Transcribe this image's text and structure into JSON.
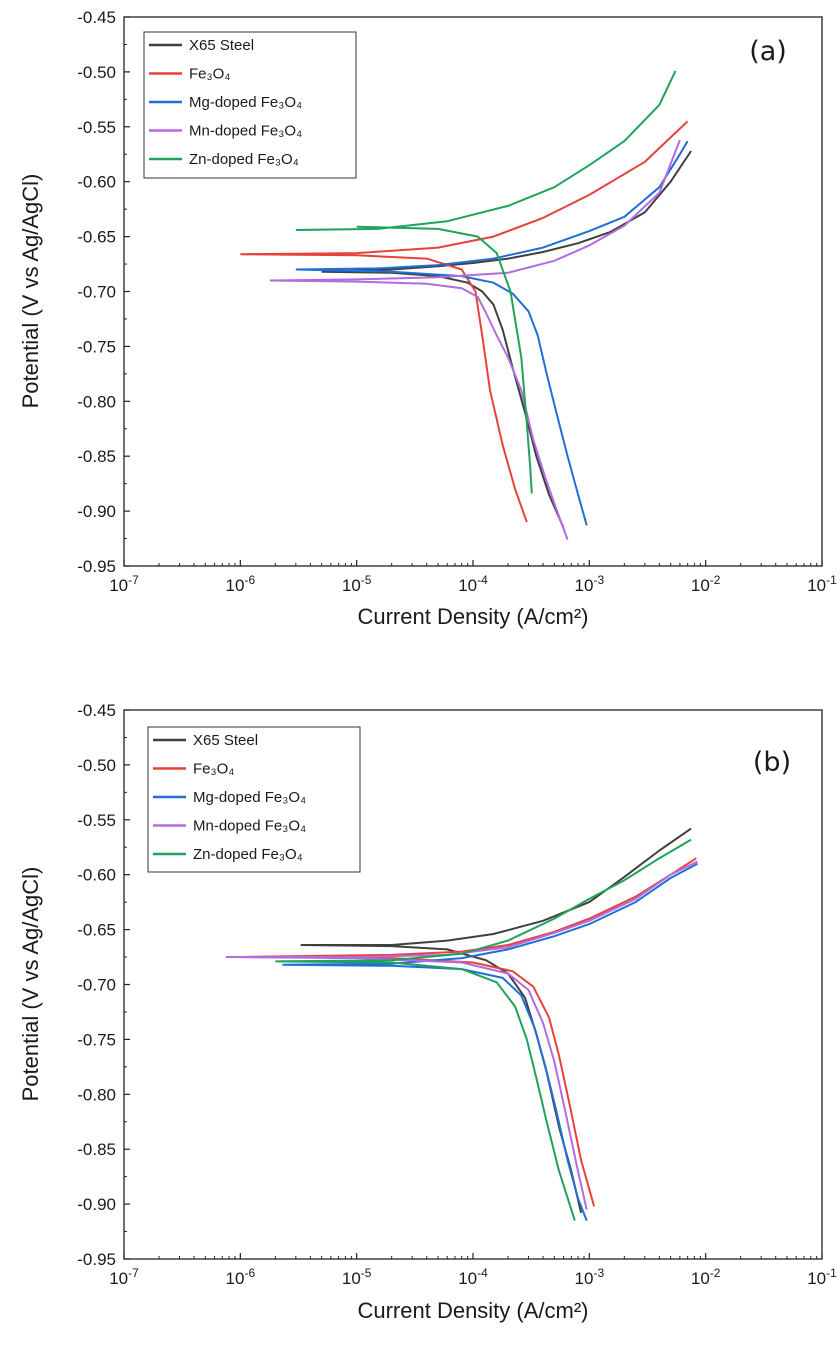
{
  "chart_data": [
    {
      "type": "line",
      "panel_label": "(a)",
      "xlabel": "Current Density (A/cm²)",
      "ylabel": "Potential (V vs Ag/AgCl)",
      "xscale": "log",
      "xlim": [
        1e-07,
        0.1
      ],
      "ylim": [
        -0.95,
        -0.45
      ],
      "x_ticks": [
        "10-7",
        "10-6",
        "10-5",
        "10-4",
        "10-3",
        "10-2",
        "10-1"
      ],
      "y_ticks": [
        "-0.45",
        "-0.50",
        "-0.55",
        "-0.60",
        "-0.65",
        "-0.70",
        "-0.75",
        "-0.80",
        "-0.85",
        "-0.90",
        "-0.95"
      ],
      "grid": false,
      "legend_position": "top-left",
      "series": [
        {
          "name": "X65 Steel",
          "color": "#404040",
          "points": [
            [
              5e-06,
              -0.682
            ],
            [
              2e-05,
              -0.68
            ],
            [
              5e-05,
              -0.677
            ],
            [
              0.0001,
              -0.674
            ],
            [
              0.0002,
              -0.67
            ],
            [
              0.0004,
              -0.664
            ],
            [
              0.0008,
              -0.656
            ],
            [
              0.0015,
              -0.646
            ],
            [
              0.003,
              -0.628
            ],
            [
              0.005,
              -0.6
            ],
            [
              0.0075,
              -0.572
            ],
            null,
            [
              5e-06,
              -0.682
            ],
            [
              2e-05,
              -0.683
            ],
            [
              5e-05,
              -0.686
            ],
            [
              9e-05,
              -0.692
            ],
            [
              0.00012,
              -0.7
            ],
            [
              0.00015,
              -0.712
            ],
            [
              0.00018,
              -0.735
            ],
            [
              0.00022,
              -0.77
            ],
            [
              0.00028,
              -0.81
            ],
            [
              0.00035,
              -0.85
            ],
            [
              0.00045,
              -0.885
            ],
            [
              0.0006,
              -0.915
            ]
          ]
        },
        {
          "name": "Fe₃O₄",
          "color": "#e8413c",
          "points": [
            [
              1e-06,
              -0.666
            ],
            [
              1e-05,
              -0.665
            ],
            [
              5e-05,
              -0.66
            ],
            [
              0.00015,
              -0.65
            ],
            [
              0.0004,
              -0.633
            ],
            [
              0.001,
              -0.612
            ],
            [
              0.003,
              -0.582
            ],
            [
              0.007,
              -0.545
            ],
            null,
            [
              1e-06,
              -0.666
            ],
            [
              1e-05,
              -0.667
            ],
            [
              4e-05,
              -0.67
            ],
            [
              8e-05,
              -0.68
            ],
            [
              0.000105,
              -0.7
            ],
            [
              0.00012,
              -0.74
            ],
            [
              0.00014,
              -0.79
            ],
            [
              0.00018,
              -0.84
            ],
            [
              0.00023,
              -0.88
            ],
            [
              0.00029,
              -0.91
            ]
          ]
        },
        {
          "name": "Mg-doped Fe₃O₄",
          "color": "#1f6fd6",
          "points": [
            [
              3e-06,
              -0.68
            ],
            [
              1.5e-05,
              -0.679
            ],
            [
              5e-05,
              -0.676
            ],
            [
              0.00015,
              -0.67
            ],
            [
              0.0004,
              -0.66
            ],
            [
              0.001,
              -0.645
            ],
            [
              0.002,
              -0.632
            ],
            [
              0.004,
              -0.605
            ],
            [
              0.006,
              -0.575
            ],
            [
              0.007,
              -0.563
            ],
            null,
            [
              3e-06,
              -0.68
            ],
            [
              2e-05,
              -0.682
            ],
            [
              8e-05,
              -0.686
            ],
            [
              0.00015,
              -0.692
            ],
            [
              0.00022,
              -0.702
            ],
            [
              0.0003,
              -0.718
            ],
            [
              0.00036,
              -0.74
            ],
            [
              0.00043,
              -0.775
            ],
            [
              0.00052,
              -0.81
            ],
            [
              0.00065,
              -0.85
            ],
            [
              0.0008,
              -0.885
            ],
            [
              0.00095,
              -0.913
            ]
          ]
        },
        {
          "name": "Mn-doped Fe₃O₄",
          "color": "#b36be0",
          "points": [
            [
              1.8e-06,
              -0.69
            ],
            [
              1e-05,
              -0.689
            ],
            [
              5e-05,
              -0.687
            ],
            [
              0.0002,
              -0.683
            ],
            [
              0.0005,
              -0.672
            ],
            [
              0.001,
              -0.658
            ],
            [
              0.002,
              -0.64
            ],
            [
              0.004,
              -0.61
            ],
            [
              0.006,
              -0.562
            ],
            null,
            [
              1.8e-06,
              -0.69
            ],
            [
              1e-05,
              -0.691
            ],
            [
              4e-05,
              -0.693
            ],
            [
              8e-05,
              -0.697
            ],
            [
              0.00011,
              -0.705
            ],
            [
              0.00013,
              -0.72
            ],
            [
              0.00016,
              -0.74
            ],
            [
              0.0002,
              -0.76
            ],
            [
              0.00026,
              -0.79
            ],
            [
              0.00033,
              -0.835
            ],
            [
              0.00042,
              -0.87
            ],
            [
              0.00052,
              -0.898
            ],
            [
              0.00065,
              -0.926
            ]
          ]
        },
        {
          "name": "Zn-doped Fe₃O₄",
          "color": "#1ea35a",
          "points": [
            [
              3e-06,
              -0.644
            ],
            [
              1.5e-05,
              -0.643
            ],
            [
              6e-05,
              -0.636
            ],
            [
              0.0002,
              -0.622
            ],
            [
              0.0005,
              -0.605
            ],
            [
              0.001,
              -0.585
            ],
            [
              0.002,
              -0.563
            ],
            [
              0.004,
              -0.53
            ],
            [
              0.0055,
              -0.499
            ],
            null,
            [
              1e-05,
              -0.641
            ],
            [
              5e-05,
              -0.643
            ],
            [
              0.00011,
              -0.65
            ],
            [
              0.00016,
              -0.665
            ],
            [
              0.00021,
              -0.7
            ],
            [
              0.00026,
              -0.76
            ],
            [
              0.00029,
              -0.82
            ],
            [
              0.00031,
              -0.86
            ],
            [
              0.00032,
              -0.884
            ]
          ]
        }
      ]
    },
    {
      "type": "line",
      "panel_label": "(b)",
      "xlabel": "Current Density (A/cm²)",
      "ylabel": "Potential (V vs Ag/AgCl)",
      "xscale": "log",
      "xlim": [
        1e-07,
        0.1
      ],
      "ylim": [
        -0.95,
        -0.45
      ],
      "x_ticks": [
        "10-7",
        "10-6",
        "10-5",
        "10-4",
        "10-3",
        "10-2",
        "10-1"
      ],
      "y_ticks": [
        "-0.45",
        "-0.50",
        "-0.55",
        "-0.60",
        "-0.65",
        "-0.70",
        "-0.75",
        "-0.80",
        "-0.85",
        "-0.90",
        "-0.95"
      ],
      "grid": false,
      "legend_position": "top-left",
      "series": [
        {
          "name": "X65 Steel",
          "color": "#404040",
          "points": [
            [
              3.3e-06,
              -0.664
            ],
            [
              2e-05,
              -0.664
            ],
            [
              6e-05,
              -0.66
            ],
            [
              0.00015,
              -0.654
            ],
            [
              0.0004,
              -0.642
            ],
            [
              0.001,
              -0.625
            ],
            [
              0.002,
              -0.602
            ],
            [
              0.004,
              -0.578
            ],
            [
              0.0075,
              -0.558
            ],
            null,
            [
              3.3e-06,
              -0.664
            ],
            [
              2e-05,
              -0.665
            ],
            [
              6e-05,
              -0.668
            ],
            [
              0.00013,
              -0.678
            ],
            [
              0.0002,
              -0.69
            ],
            [
              0.00028,
              -0.712
            ],
            [
              0.00035,
              -0.745
            ],
            [
              0.00043,
              -0.78
            ],
            [
              0.00055,
              -0.83
            ],
            [
              0.0007,
              -0.87
            ],
            [
              0.00085,
              -0.908
            ]
          ]
        },
        {
          "name": "Fe₃O₄",
          "color": "#e8413c",
          "points": [
            [
              1e-06,
              -0.675
            ],
            [
              2e-05,
              -0.673
            ],
            [
              8e-05,
              -0.67
            ],
            [
              0.0002,
              -0.664
            ],
            [
              0.0005,
              -0.652
            ],
            [
              0.001,
              -0.64
            ],
            [
              0.0025,
              -0.62
            ],
            [
              0.005,
              -0.6
            ],
            [
              0.0083,
              -0.585
            ],
            null,
            [
              1e-06,
              -0.675
            ],
            [
              2e-05,
              -0.676
            ],
            [
              0.0001,
              -0.68
            ],
            [
              0.00022,
              -0.688
            ],
            [
              0.00033,
              -0.702
            ],
            [
              0.00045,
              -0.73
            ],
            [
              0.00055,
              -0.765
            ],
            [
              0.00068,
              -0.81
            ],
            [
              0.00085,
              -0.86
            ],
            [
              0.0011,
              -0.902
            ]
          ]
        },
        {
          "name": "Mg-doped Fe₃O₄",
          "color": "#1f6fd6",
          "points": [
            [
              2.3e-06,
              -0.682
            ],
            [
              2e-05,
              -0.681
            ],
            [
              8e-05,
              -0.676
            ],
            [
              0.0002,
              -0.668
            ],
            [
              0.0005,
              -0.656
            ],
            [
              0.001,
              -0.645
            ],
            [
              0.0025,
              -0.625
            ],
            [
              0.005,
              -0.603
            ],
            [
              0.0085,
              -0.59
            ],
            null,
            [
              2.3e-06,
              -0.682
            ],
            [
              2e-05,
              -0.683
            ],
            [
              8e-05,
              -0.686
            ],
            [
              0.00018,
              -0.694
            ],
            [
              0.00026,
              -0.71
            ],
            [
              0.00034,
              -0.74
            ],
            [
              0.00042,
              -0.775
            ],
            [
              0.00052,
              -0.815
            ],
            [
              0.00065,
              -0.86
            ],
            [
              0.0008,
              -0.895
            ],
            [
              0.00095,
              -0.915
            ]
          ]
        },
        {
          "name": "Mn-doped Fe₃O₄",
          "color": "#b36be0",
          "points": [
            [
              7.5e-07,
              -0.675
            ],
            [
              1e-05,
              -0.675
            ],
            [
              6e-05,
              -0.673
            ],
            [
              0.0002,
              -0.666
            ],
            [
              0.0005,
              -0.653
            ],
            [
              0.001,
              -0.642
            ],
            [
              0.0025,
              -0.622
            ],
            [
              0.005,
              -0.6
            ],
            [
              0.0085,
              -0.588
            ],
            null,
            [
              7.5e-07,
              -0.675
            ],
            [
              1e-05,
              -0.676
            ],
            [
              8e-05,
              -0.68
            ],
            [
              0.0002,
              -0.69
            ],
            [
              0.0003,
              -0.705
            ],
            [
              0.0004,
              -0.735
            ],
            [
              0.0005,
              -0.77
            ],
            [
              0.00062,
              -0.815
            ],
            [
              0.00078,
              -0.865
            ],
            [
              0.00095,
              -0.905
            ]
          ]
        },
        {
          "name": "Zn-doped Fe₃O₄",
          "color": "#1ea35a",
          "points": [
            [
              2e-06,
              -0.679
            ],
            [
              2e-05,
              -0.678
            ],
            [
              8e-05,
              -0.672
            ],
            [
              0.0002,
              -0.66
            ],
            [
              0.0005,
              -0.64
            ],
            [
              0.001,
              -0.622
            ],
            [
              0.002,
              -0.605
            ],
            [
              0.004,
              -0.585
            ],
            [
              0.0075,
              -0.568
            ],
            null,
            [
              2e-06,
              -0.679
            ],
            [
              2e-05,
              -0.68
            ],
            [
              8e-05,
              -0.686
            ],
            [
              0.00016,
              -0.698
            ],
            [
              0.00023,
              -0.72
            ],
            [
              0.00029,
              -0.75
            ],
            [
              0.00035,
              -0.785
            ],
            [
              0.00043,
              -0.825
            ],
            [
              0.00055,
              -0.87
            ],
            [
              0.00075,
              -0.915
            ]
          ]
        }
      ]
    }
  ]
}
